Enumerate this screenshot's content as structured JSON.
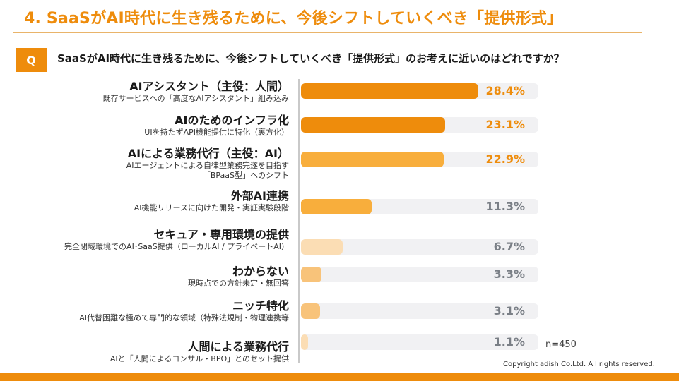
{
  "slide_title": "4. SaaSがAI時代に生き残るために、今後シフトしていくべき「提供形式」",
  "question_badge": "Q",
  "question_text": "SaaSがAI時代に生き残るために、今後シフトしていくべき「提供形式」のお考えに近いのはどれですか？",
  "sample_note": "n=450",
  "copyright": "Copyright adish Co.Ltd. All rights reserved.",
  "colors": {
    "accent": "#EE8C0C",
    "bar_dark": "#EE8C0C",
    "bar_mid": "#F8AE3C",
    "bar_light": "#F8C37A",
    "bar_pale": "#FBDDB4",
    "value_orange": "#EE8C0C",
    "value_gray": "#7A7F86",
    "track": "#F1F1F3"
  },
  "chart_data": {
    "type": "bar",
    "orientation": "horizontal",
    "unit": "%",
    "xlim": [
      0,
      100
    ],
    "categories": [
      "AIアシスタント（主役：人間）",
      "AIのためのインフラ化",
      "AIによる業務代行（主役：AI）",
      "外部AI連携",
      "セキュア・専用環境の提供",
      "わからない",
      "ニッチ特化",
      "人間による業務代行"
    ],
    "descriptions": [
      [
        "既存サービスへの「高度なAIアシスタント」組み込み"
      ],
      [
        "UIを持たずAPI機能提供に特化（裏方化）"
      ],
      [
        "AIエージェントによる自律型業務完遂を目指す",
        "「BPaaS型」へのシフト"
      ],
      [
        "AI機能リリースに向けた開発・実証実験段階"
      ],
      [
        "完全閉域環境でのAI･SaaS提供（ローカルAI / プライベートAI）"
      ],
      [
        "現時点での方針未定・無回答"
      ],
      [
        "AI代替困難な極めて専門的な領域（特殊法規制・物理連携等"
      ],
      [
        "AIと「人間によるコンサル・BPO」とのセット提供"
      ]
    ],
    "values": [
      28.4,
      23.1,
      22.9,
      11.3,
      6.7,
      3.3,
      3.1,
      1.1
    ],
    "value_labels": [
      "28.4%",
      "23.1%",
      "22.9%",
      "11.3%",
      "6.7%",
      "3.3%",
      "3.1%",
      "1.1%"
    ],
    "grid": false,
    "legend": "none"
  }
}
